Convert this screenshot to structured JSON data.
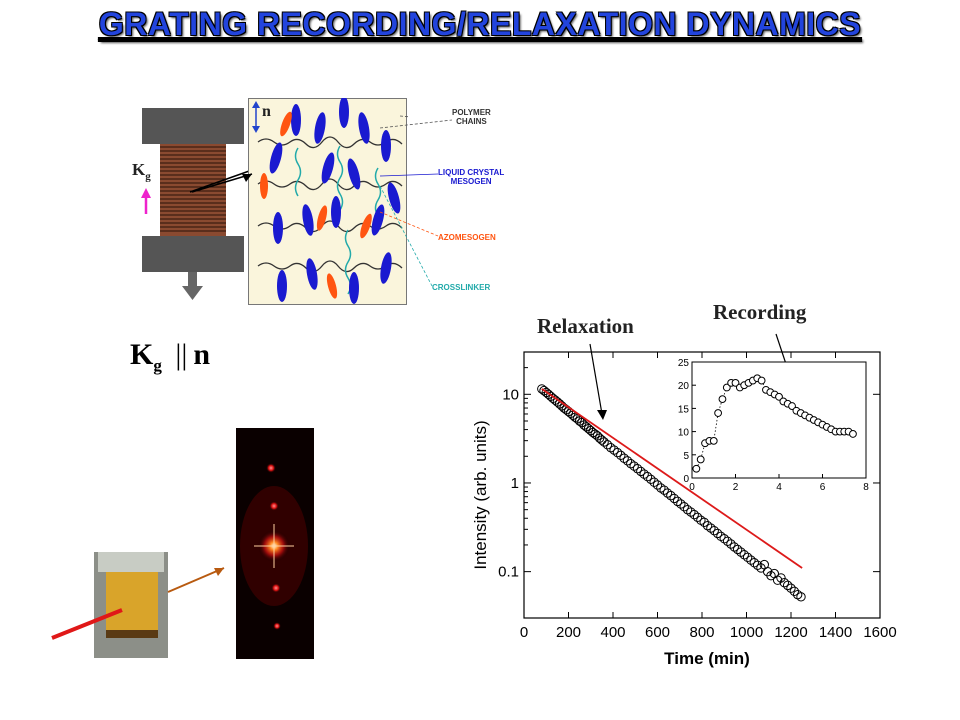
{
  "slide": {
    "title": "GRATING RECORDING/RELAXATION DYNAMICS"
  },
  "schematic": {
    "n_label": "n",
    "kg_label": "K",
    "kg_sub": "g",
    "legend": {
      "polymer": [
        "POLYMER",
        "CHAINS"
      ],
      "lc": [
        "LIQUID CRYSTAL",
        "MESOGEN"
      ],
      "azo": "AZOMESOGEN",
      "crosslinker": "CROSSLINKER"
    },
    "colors": {
      "polymer": "#333333",
      "lc": "#1a1ad0",
      "azo": "#ff5511",
      "crosslinker": "#22aaaa"
    }
  },
  "relation": {
    "k": "K",
    "sub": "g",
    "op": "||",
    "n": "n"
  },
  "annotations": {
    "relaxation": "Relaxation",
    "recording": "Recording"
  },
  "chart_data": [
    {
      "type": "scatter",
      "xlabel": "Time (min)",
      "ylabel": "Intensity (arb. units)",
      "xlim": [
        0,
        1600
      ],
      "ylim": [
        0.03,
        30
      ],
      "yscale": "log",
      "xticks": [
        0,
        200,
        400,
        600,
        800,
        1000,
        1200,
        1400,
        1600
      ],
      "yticks": [
        {
          "v": 0.1,
          "label": "0.1"
        },
        {
          "v": 1,
          "label": "1"
        },
        {
          "v": 10,
          "label": "10"
        }
      ],
      "series": [
        {
          "marker": "open-circle",
          "x": [
            80,
            90,
            100,
            110,
            120,
            130,
            140,
            150,
            160,
            170,
            180,
            190,
            200,
            210,
            220,
            230,
            240,
            250,
            260,
            270,
            280,
            290,
            300,
            310,
            320,
            330,
            340,
            350,
            360,
            375,
            390,
            405,
            420,
            435,
            450,
            465,
            480,
            495,
            510,
            525,
            540,
            555,
            570,
            585,
            600,
            615,
            630,
            645,
            660,
            675,
            690,
            705,
            720,
            735,
            750,
            765,
            780,
            795,
            810,
            825,
            840,
            855,
            870,
            885,
            900,
            915,
            930,
            945,
            960,
            975,
            990,
            1005,
            1020,
            1035,
            1050,
            1065,
            1080,
            1095,
            1110,
            1125,
            1140,
            1155,
            1170,
            1185,
            1200,
            1215,
            1230,
            1245
          ],
          "y": [
            11.5,
            11.0,
            10.5,
            10.0,
            9.5,
            9.0,
            8.6,
            8.2,
            7.8,
            7.4,
            7.0,
            6.7,
            6.4,
            6.1,
            5.8,
            5.5,
            5.3,
            5.0,
            4.8,
            4.5,
            4.3,
            4.1,
            3.9,
            3.7,
            3.55,
            3.4,
            3.2,
            3.05,
            2.9,
            2.7,
            2.5,
            2.35,
            2.2,
            2.05,
            1.9,
            1.78,
            1.65,
            1.55,
            1.45,
            1.35,
            1.26,
            1.18,
            1.1,
            1.02,
            0.95,
            0.88,
            0.83,
            0.77,
            0.72,
            0.67,
            0.62,
            0.58,
            0.54,
            0.5,
            0.47,
            0.44,
            0.41,
            0.38,
            0.36,
            0.33,
            0.31,
            0.29,
            0.27,
            0.25,
            0.235,
            0.22,
            0.205,
            0.19,
            0.178,
            0.166,
            0.155,
            0.145,
            0.135,
            0.126,
            0.118,
            0.11,
            0.12,
            0.1,
            0.09,
            0.095,
            0.08,
            0.085,
            0.075,
            0.07,
            0.065,
            0.06,
            0.055,
            0.052
          ]
        },
        {
          "marker": "red-line",
          "x": [
            80,
            1250
          ],
          "y": [
            11.5,
            0.11
          ]
        }
      ]
    },
    {
      "type": "scatter",
      "xlim": [
        0,
        8
      ],
      "ylim": [
        0,
        25
      ],
      "xticks": [
        0,
        2,
        4,
        6,
        8
      ],
      "yticks": [
        0,
        5,
        10,
        15,
        20,
        25
      ],
      "series": [
        {
          "marker": "open-circle",
          "x": [
            0.2,
            0.4,
            0.6,
            0.8,
            1.0,
            1.2,
            1.4,
            1.6,
            1.8,
            2.0,
            2.2,
            2.4,
            2.6,
            2.8,
            3.0,
            3.2,
            3.4,
            3.6,
            3.8,
            4.0,
            4.2,
            4.4,
            4.6,
            4.8,
            5.0,
            5.2,
            5.4,
            5.6,
            5.8,
            6.0,
            6.2,
            6.4,
            6.6,
            6.8,
            7.0,
            7.2,
            7.4
          ],
          "y": [
            2,
            4,
            7.5,
            8,
            8,
            14,
            17,
            19.5,
            20.5,
            20.5,
            19.5,
            20,
            20.5,
            21,
            21.5,
            21,
            19,
            18.5,
            18,
            17.5,
            16.5,
            16,
            15.5,
            14.5,
            14,
            13.5,
            13,
            12.5,
            12,
            11.5,
            11,
            10.5,
            10,
            10,
            10,
            10,
            9.5
          ]
        }
      ]
    }
  ]
}
